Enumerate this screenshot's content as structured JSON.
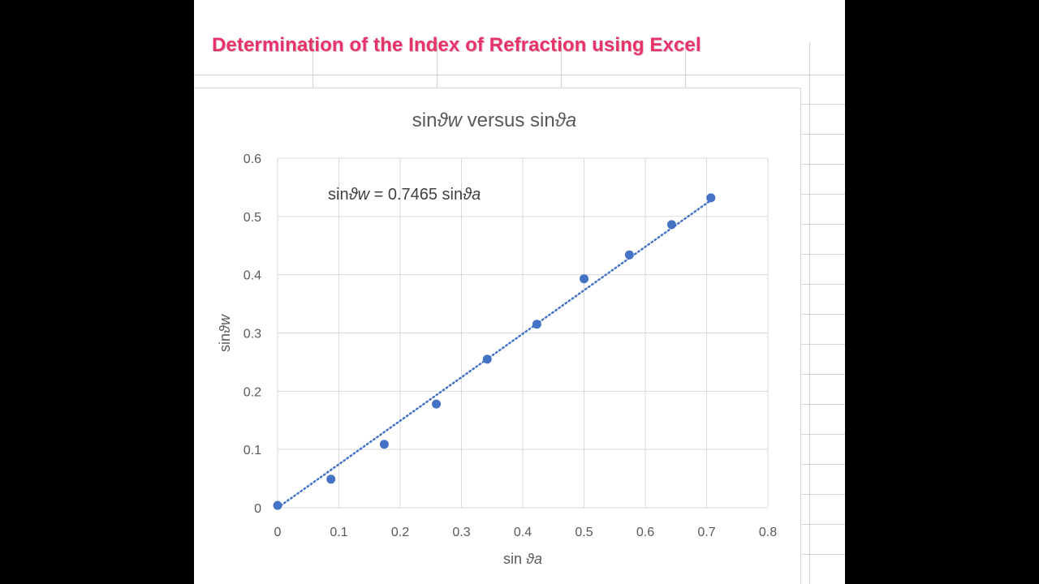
{
  "page": {
    "heading": "Determination of the Index of Refraction using Excel",
    "heading_color": "#e8336a"
  },
  "chart_data": {
    "type": "scatter",
    "title": "sinϑw versus sinϑa",
    "title_parts": [
      "sin",
      "ϑw",
      " versus sin",
      "ϑa"
    ],
    "xlabel": "sin ϑa",
    "xlabel_parts": [
      "sin ",
      "ϑa"
    ],
    "ylabel": "sinϑw",
    "ylabel_parts": [
      "sin",
      "ϑw"
    ],
    "xlim": [
      0,
      0.8
    ],
    "ylim": [
      0,
      0.6
    ],
    "x_ticks": [
      "0",
      "0.1",
      "0.2",
      "0.3",
      "0.4",
      "0.5",
      "0.6",
      "0.7",
      "0.8"
    ],
    "y_ticks": [
      "0",
      "0.1",
      "0.2",
      "0.3",
      "0.4",
      "0.5",
      "0.6"
    ],
    "grid": true,
    "marker_color": "#4472c4",
    "series": [
      {
        "x": [
          0,
          0.087,
          0.174,
          0.259,
          0.342,
          0.423,
          0.5,
          0.574,
          0.643,
          0.707
        ],
        "y": [
          0.004,
          0.049,
          0.109,
          0.178,
          0.255,
          0.315,
          0.393,
          0.434,
          0.486,
          0.532
        ]
      }
    ],
    "trendline": {
      "style": "dotted",
      "color": "#4472c4",
      "slope": 0.7465,
      "intercept": 0,
      "x_range": [
        0,
        0.707
      ],
      "equation": "sinϑw = 0.7465 sinϑa",
      "equation_parts": [
        "sin",
        "ϑw",
        " = 0.7465 sin",
        "ϑa"
      ]
    }
  }
}
